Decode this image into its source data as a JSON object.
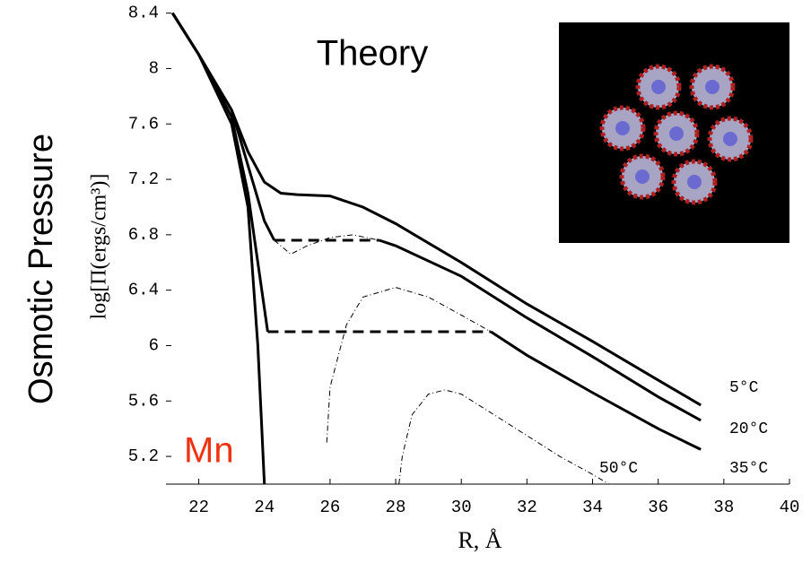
{
  "chart_data": {
    "type": "line",
    "title": "Theory",
    "side_label": "Osmotic Pressure",
    "annotation": "Mn",
    "annotation_color": "#ee3311",
    "x_label": "R, Å",
    "y_label": "log[Π(ergs/cm³)]",
    "xlim": [
      21,
      40
    ],
    "ylim": [
      5.0,
      8.43
    ],
    "xticks": [
      22,
      24,
      26,
      28,
      30,
      32,
      34,
      36,
      38,
      40
    ],
    "yticks": [
      5.2,
      5.6,
      6,
      6.4,
      6.8,
      7.2,
      7.6,
      8,
      8.4
    ],
    "series": [
      {
        "name": "5°C",
        "color": "#000000",
        "x": [
          21.2,
          22,
          23,
          23.5,
          24,
          24.5,
          25,
          26,
          27,
          28,
          30,
          32,
          34,
          36,
          37.3
        ],
        "values": [
          8.4,
          8.1,
          7.7,
          7.4,
          7.18,
          7.1,
          7.09,
          7.08,
          7.0,
          6.88,
          6.6,
          6.3,
          6.03,
          5.75,
          5.57
        ]
      },
      {
        "name": "20°C",
        "color": "#000000",
        "x": [
          21.2,
          22,
          23,
          23.5,
          24,
          24.3,
          null,
          27.5,
          28,
          30,
          32,
          34,
          36,
          37.3
        ],
        "values": [
          8.4,
          8.1,
          7.7,
          7.3,
          6.9,
          6.76,
          null,
          6.76,
          6.72,
          6.5,
          6.2,
          5.92,
          5.63,
          5.46
        ]
      },
      {
        "name": "35°C",
        "color": "#000000",
        "x": [
          21.2,
          22,
          23,
          23.5,
          23.8,
          24.1,
          null,
          30.9,
          32,
          34,
          36,
          37.3
        ],
        "values": [
          8.4,
          8.1,
          7.65,
          7.1,
          6.6,
          6.1,
          null,
          6.1,
          5.93,
          5.66,
          5.4,
          5.25
        ]
      },
      {
        "name": "50°C",
        "color": "#000000",
        "x": [
          21.2,
          22,
          23,
          23.5,
          23.8,
          23.9,
          24.0
        ],
        "values": [
          8.4,
          8.1,
          7.6,
          7.0,
          6.0,
          5.5,
          5.0
        ]
      }
    ],
    "tie_lines": [
      {
        "x": [
          24.3,
          27.5
        ],
        "values": [
          6.76,
          6.76
        ]
      },
      {
        "x": [
          24.1,
          30.9
        ],
        "values": [
          6.1,
          6.1
        ]
      }
    ],
    "spinodals": [
      {
        "x": [
          24.3,
          24.8,
          25.3,
          26,
          26.7,
          27.5
        ],
        "values": [
          6.76,
          6.66,
          6.72,
          6.78,
          6.8,
          6.76
        ]
      },
      {
        "x": [
          25.9,
          26,
          26.5,
          27,
          28,
          29,
          30,
          30.9
        ],
        "values": [
          5.3,
          5.7,
          6.15,
          6.35,
          6.42,
          6.35,
          6.22,
          6.1
        ]
      },
      {
        "x": [
          28.1,
          28.2,
          28.5,
          29,
          29.5,
          30,
          31,
          32,
          33,
          34,
          34.5
        ],
        "values": [
          5.0,
          5.2,
          5.5,
          5.65,
          5.68,
          5.65,
          5.5,
          5.35,
          5.2,
          5.07,
          5.0
        ]
      }
    ]
  }
}
